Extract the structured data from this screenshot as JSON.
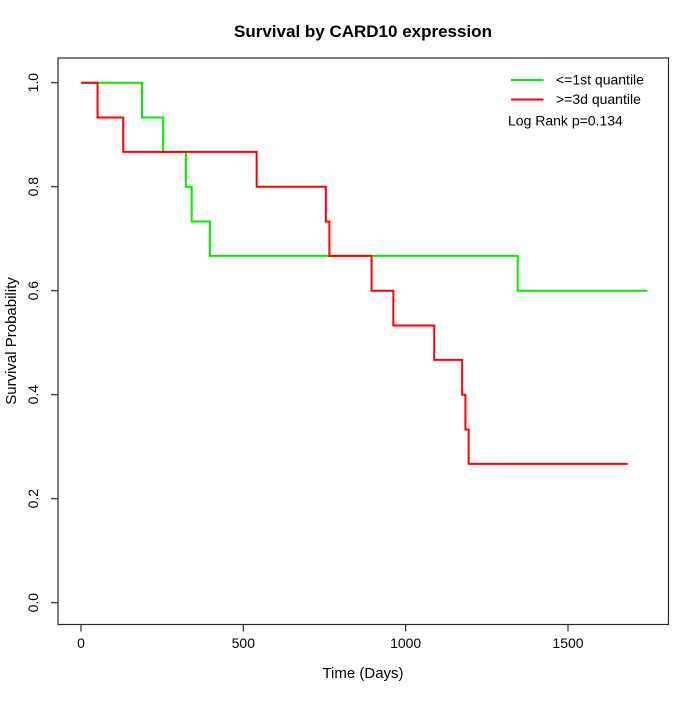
{
  "title": "Survival by CARD10 expression",
  "axes": {
    "x_label": "Time (Days)",
    "y_label": "Survival Probability"
  },
  "legend": {
    "items": [
      {
        "label": "<=1st quantile",
        "color": "#00EE00"
      },
      {
        "label": ">=3d quantile",
        "color": "#FF0000"
      }
    ],
    "note": "Log Rank p=0.134"
  },
  "chart_data": {
    "type": "line",
    "subtype": "kaplan-meier-step",
    "title": "Survival by CARD10 expression",
    "xlabel": "Time (Days)",
    "ylabel": "Survival Probability",
    "xlim": [
      0,
      1800
    ],
    "ylim": [
      0,
      1
    ],
    "x_ticks": [
      0,
      500,
      1000,
      1500
    ],
    "y_ticks": [
      0.0,
      0.2,
      0.4,
      0.6,
      0.8,
      1.0
    ],
    "grid": false,
    "legend_position": "top-right",
    "annotation": "Log Rank p=0.134",
    "series": [
      {
        "name": "<=1st quantile",
        "color": "#00EE00",
        "start": {
          "t": 0,
          "s": 1.0
        },
        "steps": [
          [
            188,
            0.933
          ],
          [
            253,
            0.867
          ],
          [
            323,
            0.8
          ],
          [
            341,
            0.733
          ],
          [
            397,
            0.667
          ],
          [
            1345,
            0.6
          ]
        ],
        "end_t": 1745
      },
      {
        "name": ">=3d quantile",
        "color": "#FF0000",
        "start": {
          "t": 0,
          "s": 1.0
        },
        "steps": [
          [
            51,
            0.933
          ],
          [
            130,
            0.867
          ],
          [
            541,
            0.8
          ],
          [
            754,
            0.733
          ],
          [
            765,
            0.667
          ],
          [
            895,
            0.6
          ],
          [
            962,
            0.533
          ],
          [
            1088,
            0.467
          ],
          [
            1174,
            0.4
          ],
          [
            1184,
            0.333
          ],
          [
            1194,
            0.267
          ]
        ],
        "end_t": 1684
      }
    ]
  }
}
